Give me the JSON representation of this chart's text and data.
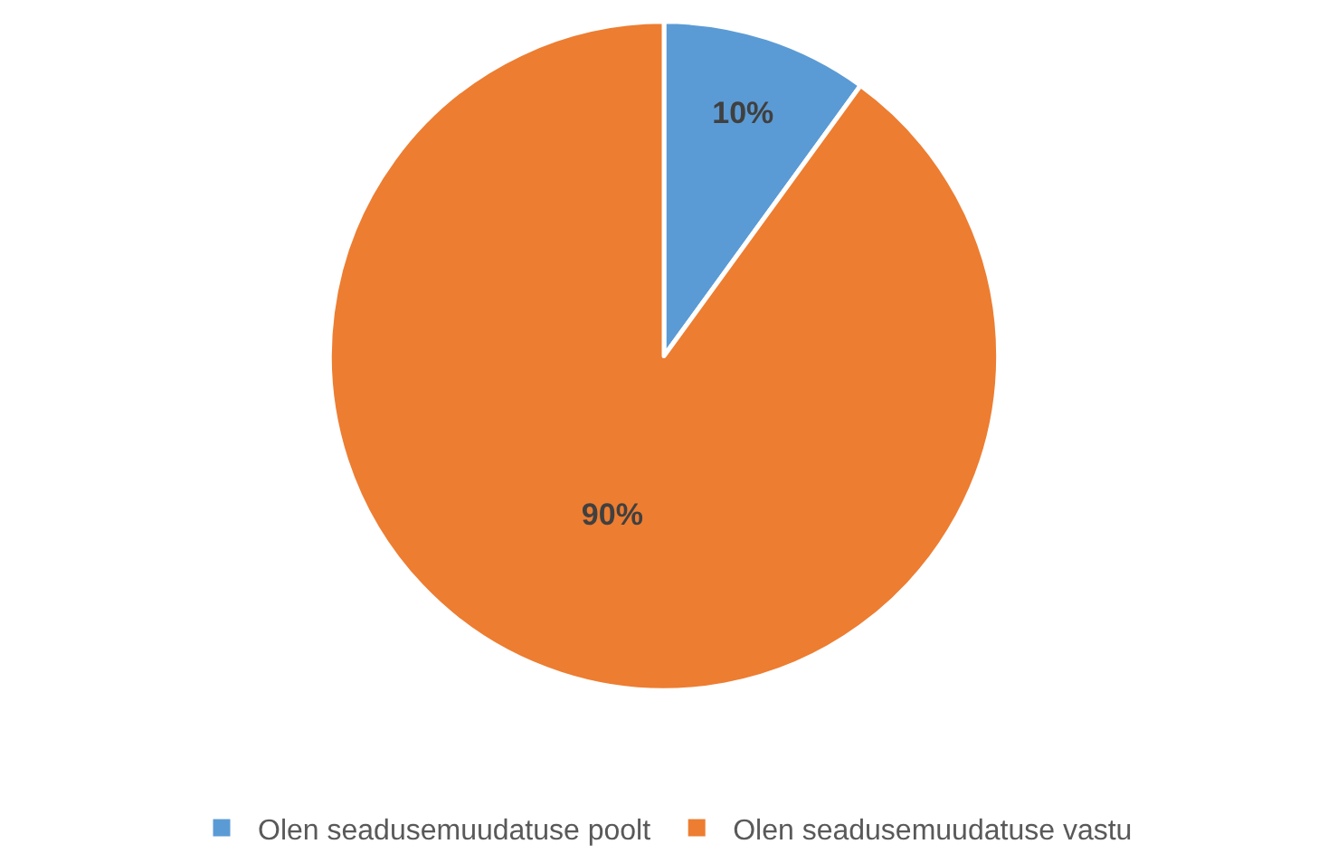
{
  "chart_data": {
    "type": "pie",
    "categories": [
      "Olen seadusemuudatuse poolt",
      "Olen seadusemuudatuse vastu"
    ],
    "values": [
      10,
      90
    ],
    "colors": [
      "#5b9bd5",
      "#ed7d31"
    ],
    "value_labels": [
      "10%",
      "90%"
    ],
    "legend": "bottom"
  }
}
